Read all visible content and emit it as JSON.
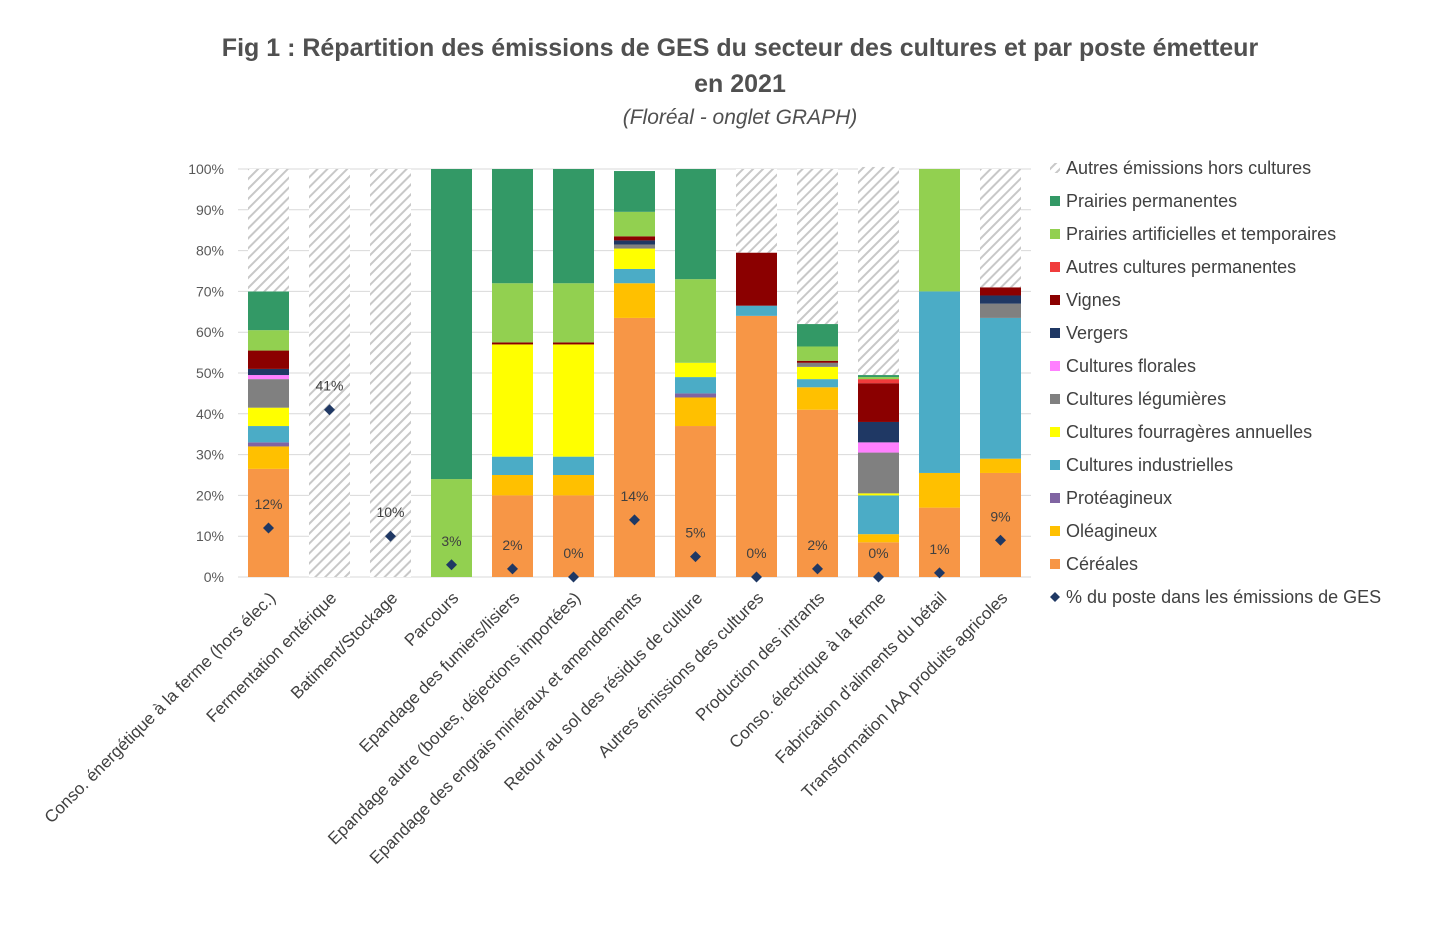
{
  "chart_data": {
    "type": "bar",
    "stacked": true,
    "title_line1": "Fig 1 : Répartition des émissions de GES du secteur des cultures et par poste émetteur",
    "title_line2": "en 2021",
    "subtitle": "(Floréal - onglet GRAPH)",
    "y_ticks": [
      "0%",
      "10%",
      "20%",
      "30%",
      "40%",
      "50%",
      "60%",
      "70%",
      "80%",
      "90%",
      "100%"
    ],
    "ylim": [
      0,
      100
    ],
    "grid": true,
    "legend_position": "right",
    "categories": [
      "Conso. énergétique à la ferme (hors élec.)",
      "Fermentation entérique",
      "Batiment/Stockage",
      "Parcours",
      "Epandage des fumiers/lisiers",
      "Epandage autre (boues, déjections importées)",
      "Epandage des engrais minéraux et amendements",
      "Retour au sol des résidus de culture",
      "Autres émissions des cultures",
      "Production des intrants",
      "Conso. électrique à la ferme",
      "Fabrication d'aliments du bétail",
      "Transformation IAA produits agricoles"
    ],
    "series": [
      {
        "name": "Céréales",
        "color": "#F79646",
        "values": [
          26.5,
          0,
          0,
          0,
          20,
          20,
          63.5,
          37,
          64,
          41,
          8.5,
          17,
          25.5
        ]
      },
      {
        "name": "Oléagineux",
        "color": "#FFC000",
        "values": [
          5.5,
          0,
          0,
          0,
          5,
          5,
          8.5,
          7,
          0,
          5.5,
          2,
          8.5,
          3.5
        ]
      },
      {
        "name": "Protéagineux",
        "color": "#8064A2",
        "values": [
          1,
          0,
          0,
          0,
          0,
          0,
          0,
          1,
          0,
          0,
          0,
          0,
          0
        ]
      },
      {
        "name": "Cultures industrielles",
        "color": "#4BACC6",
        "values": [
          4,
          0,
          0,
          0,
          4.5,
          4.5,
          3.5,
          4,
          2.5,
          2,
          9.5,
          44.5,
          34.5
        ]
      },
      {
        "name": "Cultures fourragères annuelles",
        "color": "#FFFF00",
        "values": [
          4.5,
          0,
          0,
          0,
          27.5,
          27.5,
          5,
          3.5,
          0,
          3,
          0.5,
          0,
          0
        ]
      },
      {
        "name": "Cultures légumières",
        "color": "#808080",
        "values": [
          7,
          0,
          0,
          0,
          0,
          0,
          1,
          0,
          0,
          1,
          10,
          0,
          3.5
        ]
      },
      {
        "name": "Cultures florales",
        "color": "#FF80FF",
        "values": [
          1,
          0,
          0,
          0,
          0,
          0,
          0,
          0,
          0,
          0,
          2.5,
          0,
          0
        ]
      },
      {
        "name": "Vergers",
        "color": "#1F3864",
        "values": [
          1.5,
          0,
          0,
          0,
          0,
          0,
          1,
          0,
          0,
          0,
          5,
          0,
          2
        ]
      },
      {
        "name": "Vignes",
        "color": "#8B0000",
        "values": [
          4.5,
          0,
          0,
          0,
          0.5,
          0.5,
          1,
          0,
          13,
          0.5,
          9.5,
          0,
          2
        ]
      },
      {
        "name": "Autres cultures permanentes",
        "color": "#F03C3C",
        "values": [
          0,
          0,
          0,
          0,
          0,
          0,
          0,
          0,
          0,
          0,
          1,
          0,
          0
        ]
      },
      {
        "name": "Prairies artificielles et temporaires",
        "color": "#92D050",
        "values": [
          5,
          0,
          0,
          24,
          14.5,
          14.5,
          6,
          20.5,
          0,
          3.5,
          0.5,
          30,
          0
        ]
      },
      {
        "name": "Prairies permanentes",
        "color": "#339966",
        "values": [
          9.5,
          0,
          0,
          76,
          28,
          28,
          10,
          27,
          0,
          5.5,
          0.5,
          0,
          0
        ]
      },
      {
        "name": "Autres émissions hors cultures",
        "color": "#D9D9D9",
        "pattern": "hatch",
        "values": [
          30,
          100,
          100,
          0,
          0,
          0,
          0,
          0,
          20.5,
          38,
          51,
          0,
          29
        ]
      }
    ],
    "share_series": {
      "name": "% du poste dans les émissions de GES",
      "color": "#1F3864",
      "values": [
        12,
        41,
        10,
        3,
        2,
        0,
        14,
        5,
        0,
        2,
        0,
        1,
        9
      ],
      "labels": [
        "12%",
        "41%",
        "10%",
        "3%",
        "2%",
        "0%",
        "14%",
        "5%",
        "0%",
        "2%",
        "0%",
        "1%",
        "9%"
      ]
    },
    "legend": [
      "Autres émissions hors cultures",
      "Prairies permanentes",
      "Prairies artificielles et temporaires",
      "Autres cultures permanentes",
      "Vignes",
      "Vergers",
      "Cultures florales",
      "Cultures légumières",
      "Cultures fourragères annuelles",
      "Cultures industrielles",
      "Protéagineux",
      "Oléagineux",
      "Céréales",
      "% du poste dans les émissions de GES"
    ]
  }
}
